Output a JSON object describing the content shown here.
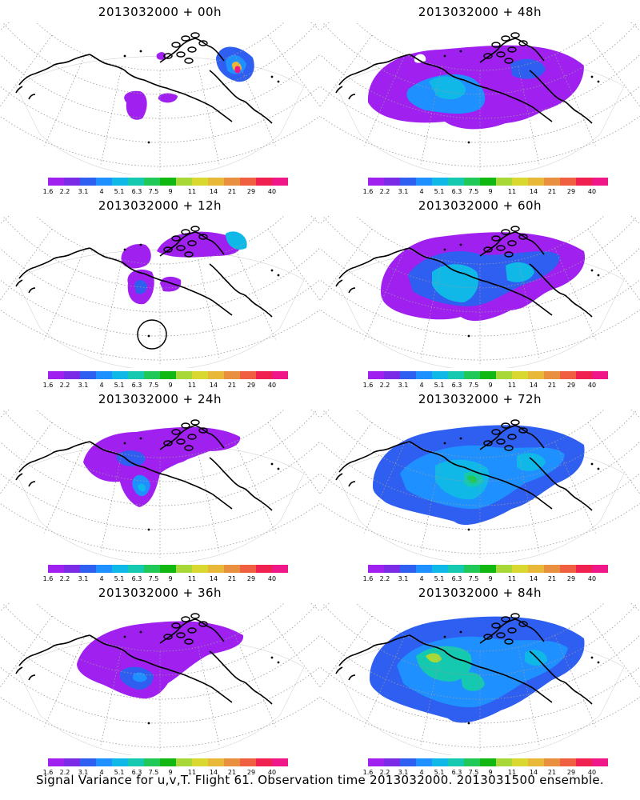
{
  "figure": {
    "caption": "Signal Variance for u,v,T. Flight 61. Observation time 2013032000. 2013031500 ensemble."
  },
  "colorbar": {
    "ticks": [
      "1.6",
      "2.2",
      "3.1",
      "4",
      "5.1",
      "6.3",
      "7.5",
      "9",
      "11",
      "14",
      "21",
      "29",
      "40"
    ],
    "colors": [
      "#a020f0",
      "#7b2be6",
      "#2f5ff0",
      "#1e90ff",
      "#10b8e8",
      "#15c8b0",
      "#20c858",
      "#12b812",
      "#a8d838",
      "#d8d830",
      "#e8b838",
      "#e89040",
      "#f06040",
      "#f02050",
      "#f01888"
    ]
  },
  "panels": [
    {
      "title": "2013032000 + 00h",
      "lead": 0
    },
    {
      "title": "2013032000 + 48h",
      "lead": 48
    },
    {
      "title": "2013032000 + 12h",
      "lead": 12
    },
    {
      "title": "2013032000 + 60h",
      "lead": 60
    },
    {
      "title": "2013032000 + 24h",
      "lead": 24
    },
    {
      "title": "2013032000 + 72h",
      "lead": 72
    },
    {
      "title": "2013032000 + 36h",
      "lead": 36
    },
    {
      "title": "2013032000 + 84h",
      "lead": 84
    }
  ]
}
